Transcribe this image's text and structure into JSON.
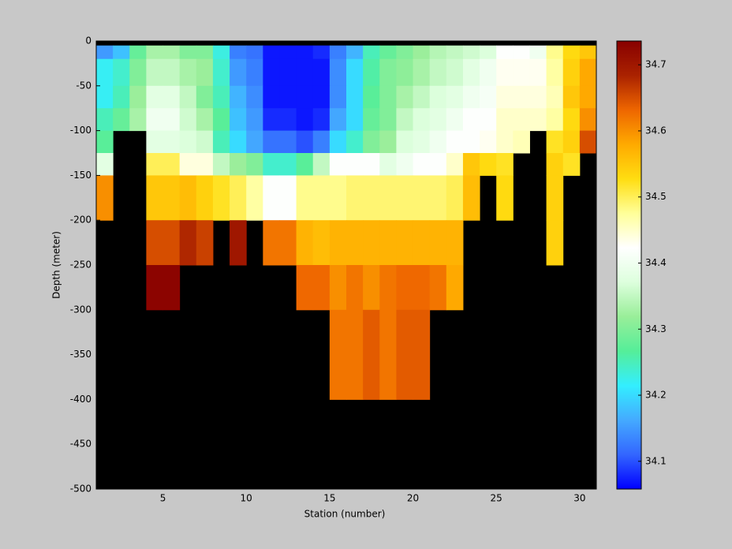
{
  "chart_data": {
    "type": "heatmap",
    "x_label": "Station (number)",
    "y_label": "Depth (meter)",
    "x_edges": [
      1,
      2,
      3,
      4,
      5,
      6,
      7,
      8,
      9,
      10,
      11,
      12,
      13,
      14,
      15,
      16,
      17,
      18,
      19,
      20,
      21,
      22,
      23,
      24,
      25,
      26,
      27,
      28,
      29,
      30,
      31
    ],
    "y_edges": [
      0,
      -5,
      -20,
      -50,
      -75,
      -100,
      -125,
      -150,
      -200,
      -250,
      -300,
      -400,
      -500
    ],
    "values": [
      [
        null,
        null,
        null,
        null,
        null,
        null,
        null,
        null,
        null,
        null,
        null,
        null,
        null,
        null,
        null,
        null,
        null,
        null,
        null,
        null,
        null,
        null,
        null,
        null,
        null,
        null,
        null,
        null,
        null,
        null
      ],
      [
        34.15,
        34.18,
        34.28,
        34.33,
        34.33,
        34.3,
        34.3,
        34.23,
        34.13,
        34.12,
        34.07,
        34.07,
        34.07,
        34.08,
        34.13,
        34.17,
        34.25,
        34.28,
        34.3,
        34.32,
        34.34,
        34.35,
        34.36,
        34.37,
        34.42,
        34.42,
        34.4,
        34.48,
        34.53,
        34.55
      ],
      [
        34.22,
        34.24,
        34.3,
        34.35,
        34.35,
        34.33,
        34.32,
        34.24,
        34.15,
        34.13,
        34.07,
        34.07,
        34.07,
        34.07,
        34.14,
        34.2,
        34.26,
        34.3,
        34.31,
        34.33,
        34.35,
        34.36,
        34.38,
        34.4,
        34.43,
        34.43,
        34.43,
        34.47,
        34.54,
        34.58
      ],
      [
        34.22,
        34.25,
        34.32,
        34.38,
        34.38,
        34.35,
        34.3,
        34.25,
        34.17,
        34.14,
        34.07,
        34.07,
        34.07,
        34.07,
        34.14,
        34.2,
        34.27,
        34.3,
        34.33,
        34.35,
        34.37,
        34.38,
        34.4,
        34.41,
        34.44,
        34.44,
        34.44,
        34.46,
        34.55,
        34.58
      ],
      [
        34.25,
        34.28,
        34.33,
        34.4,
        34.4,
        34.36,
        34.33,
        34.27,
        34.18,
        34.15,
        34.08,
        34.08,
        34.07,
        34.08,
        34.16,
        34.2,
        34.28,
        34.3,
        34.35,
        34.37,
        34.38,
        34.4,
        34.42,
        34.42,
        34.45,
        34.45,
        34.45,
        34.47,
        34.53,
        34.6
      ],
      [
        34.27,
        null,
        null,
        34.38,
        34.38,
        34.37,
        34.36,
        34.25,
        34.2,
        34.16,
        34.12,
        34.12,
        34.1,
        34.13,
        34.2,
        34.24,
        34.3,
        34.32,
        34.37,
        34.38,
        34.4,
        34.42,
        34.42,
        34.43,
        34.45,
        34.46,
        null,
        34.52,
        34.54,
        34.65
      ],
      [
        34.38,
        null,
        null,
        34.5,
        34.5,
        34.44,
        34.44,
        34.35,
        34.32,
        34.3,
        34.24,
        34.24,
        34.27,
        34.35,
        34.42,
        34.42,
        34.42,
        34.38,
        34.4,
        34.42,
        34.42,
        34.45,
        34.55,
        34.53,
        34.52,
        null,
        null,
        34.54,
        34.52,
        null
      ],
      [
        34.6,
        null,
        null,
        34.55,
        34.55,
        34.56,
        34.54,
        34.52,
        34.5,
        34.47,
        34.42,
        34.42,
        34.48,
        34.48,
        34.48,
        34.49,
        34.49,
        34.49,
        34.49,
        34.49,
        34.49,
        34.5,
        34.56,
        null,
        34.53,
        null,
        null,
        34.54,
        null,
        null
      ],
      [
        null,
        null,
        null,
        34.65,
        34.65,
        34.68,
        34.66,
        null,
        34.7,
        null,
        34.62,
        34.62,
        34.57,
        34.56,
        34.57,
        34.57,
        34.57,
        34.57,
        34.57,
        34.57,
        34.57,
        34.57,
        null,
        null,
        null,
        null,
        null,
        34.54,
        null,
        null
      ],
      [
        null,
        null,
        null,
        34.73,
        34.73,
        null,
        null,
        null,
        null,
        null,
        null,
        null,
        34.63,
        34.63,
        34.6,
        34.62,
        34.6,
        34.62,
        34.63,
        34.63,
        34.62,
        34.58,
        null,
        null,
        null,
        null,
        null,
        null,
        null,
        null
      ],
      [
        null,
        null,
        null,
        null,
        null,
        null,
        null,
        null,
        null,
        null,
        null,
        null,
        null,
        null,
        34.62,
        34.62,
        34.64,
        34.62,
        34.64,
        34.64,
        null,
        null,
        null,
        null,
        null,
        null,
        null,
        null,
        null,
        null
      ],
      [
        null,
        null,
        null,
        null,
        null,
        null,
        null,
        null,
        null,
        null,
        null,
        null,
        null,
        null,
        null,
        null,
        null,
        null,
        null,
        null,
        null,
        null,
        null,
        null,
        null,
        null,
        null,
        null,
        null,
        null
      ]
    ],
    "xlim": [
      1,
      31
    ],
    "xticks": [
      5,
      10,
      15,
      20,
      25,
      30
    ],
    "ylim": [
      -500,
      0
    ],
    "yticks": [
      0,
      -50,
      -100,
      -150,
      -200,
      -250,
      -300,
      -350,
      -400,
      -450,
      -500
    ],
    "clim": [
      34.058,
      34.736
    ],
    "cticks": [
      34.1,
      34.2,
      34.3,
      34.4,
      34.5,
      34.6,
      34.7
    ],
    "background": "#000000",
    "colormap": [
      "#0000ff",
      "#3366ff",
      "#44aaff",
      "#33eeff",
      "#55ee99",
      "#99ee99",
      "#ddffdd",
      "#ffffff",
      "#ffff99",
      "#ffdd11",
      "#ffaa00",
      "#ee6600",
      "#aa2200",
      "#880000"
    ]
  }
}
